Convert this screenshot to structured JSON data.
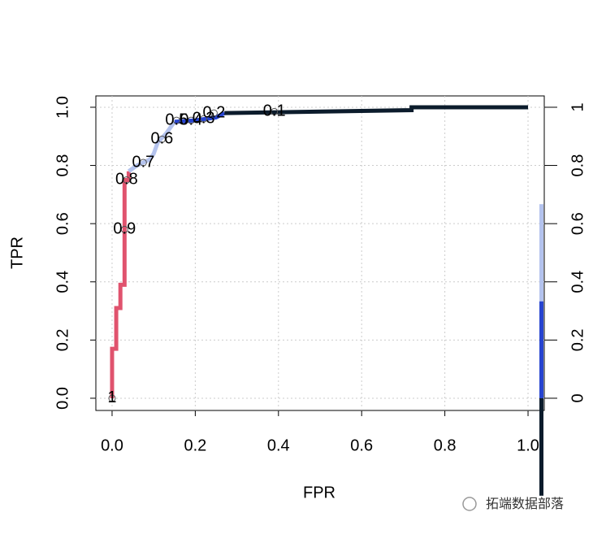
{
  "chart_data": {
    "type": "line",
    "xlabel": "FPR",
    "ylabel": "TPR",
    "xlim": [
      -0.039,
      1.039
    ],
    "ylim": [
      -0.042,
      1.039
    ],
    "y2lim": [
      -0.042,
      1.039
    ],
    "xticks": [
      {
        "value": 0,
        "label": "0.0"
      },
      0.2,
      0.4,
      0.6,
      0.8,
      {
        "value": 1,
        "label": "1.0"
      }
    ],
    "yticks": [
      {
        "value": 0,
        "label": "0.0"
      },
      0.2,
      0.4,
      0.6,
      0.8,
      {
        "value": 1,
        "label": "1.0"
      }
    ],
    "y2ticks": [
      0,
      0.2,
      0.4,
      0.6,
      0.8,
      1
    ],
    "grid": true,
    "series": [
      {
        "color": "#e0536e",
        "x": [
          0,
          0,
          0.01,
          0.01,
          0.02,
          0.02,
          0.03,
          0.03,
          0.04,
          0.04
        ],
        "y": [
          0,
          0.17,
          0.17,
          0.31,
          0.31,
          0.39,
          0.39,
          0.75,
          0.75,
          0.78
        ]
      },
      {
        "color": "#b4c3ee",
        "x": [
          0.04,
          0.06,
          0.09,
          0.1,
          0.11,
          0.13,
          0.15
        ],
        "y": [
          0.78,
          0.8,
          0.82,
          0.84,
          0.88,
          0.91,
          0.95
        ]
      },
      {
        "color": "#2744d0",
        "x": [
          0.15,
          0.2,
          0.25,
          0.27
        ],
        "y": [
          0.95,
          0.955,
          0.965,
          0.98
        ]
      },
      {
        "color": "#0c1c2c",
        "x": [
          0.27,
          0.72,
          0.72,
          1
        ],
        "y": [
          0.98,
          0.99,
          1,
          1
        ]
      }
    ],
    "cutoffs": {
      "labels": [
        "1",
        "0.9",
        "0.8",
        "0.7",
        "0.6",
        "0.5",
        "0.4",
        "0.3",
        "0.2",
        "0.1"
      ],
      "x": [
        0,
        0.03,
        0.035,
        0.075,
        0.12,
        0.155,
        0.19,
        0.22,
        0.245,
        0.39
      ],
      "y": [
        0,
        0.58,
        0.75,
        0.81,
        0.89,
        0.955,
        0.955,
        0.96,
        0.98,
        0.985
      ]
    },
    "colorbar": [
      {
        "from": 0.333,
        "to": 0.667,
        "color": "#b4c3ee"
      },
      {
        "from": 0,
        "to": 0.333,
        "color": "#2744d0"
      },
      {
        "from": -0.335,
        "to": 0,
        "color": "#0c1c2c"
      }
    ],
    "watermark": "拓端数据部落"
  }
}
